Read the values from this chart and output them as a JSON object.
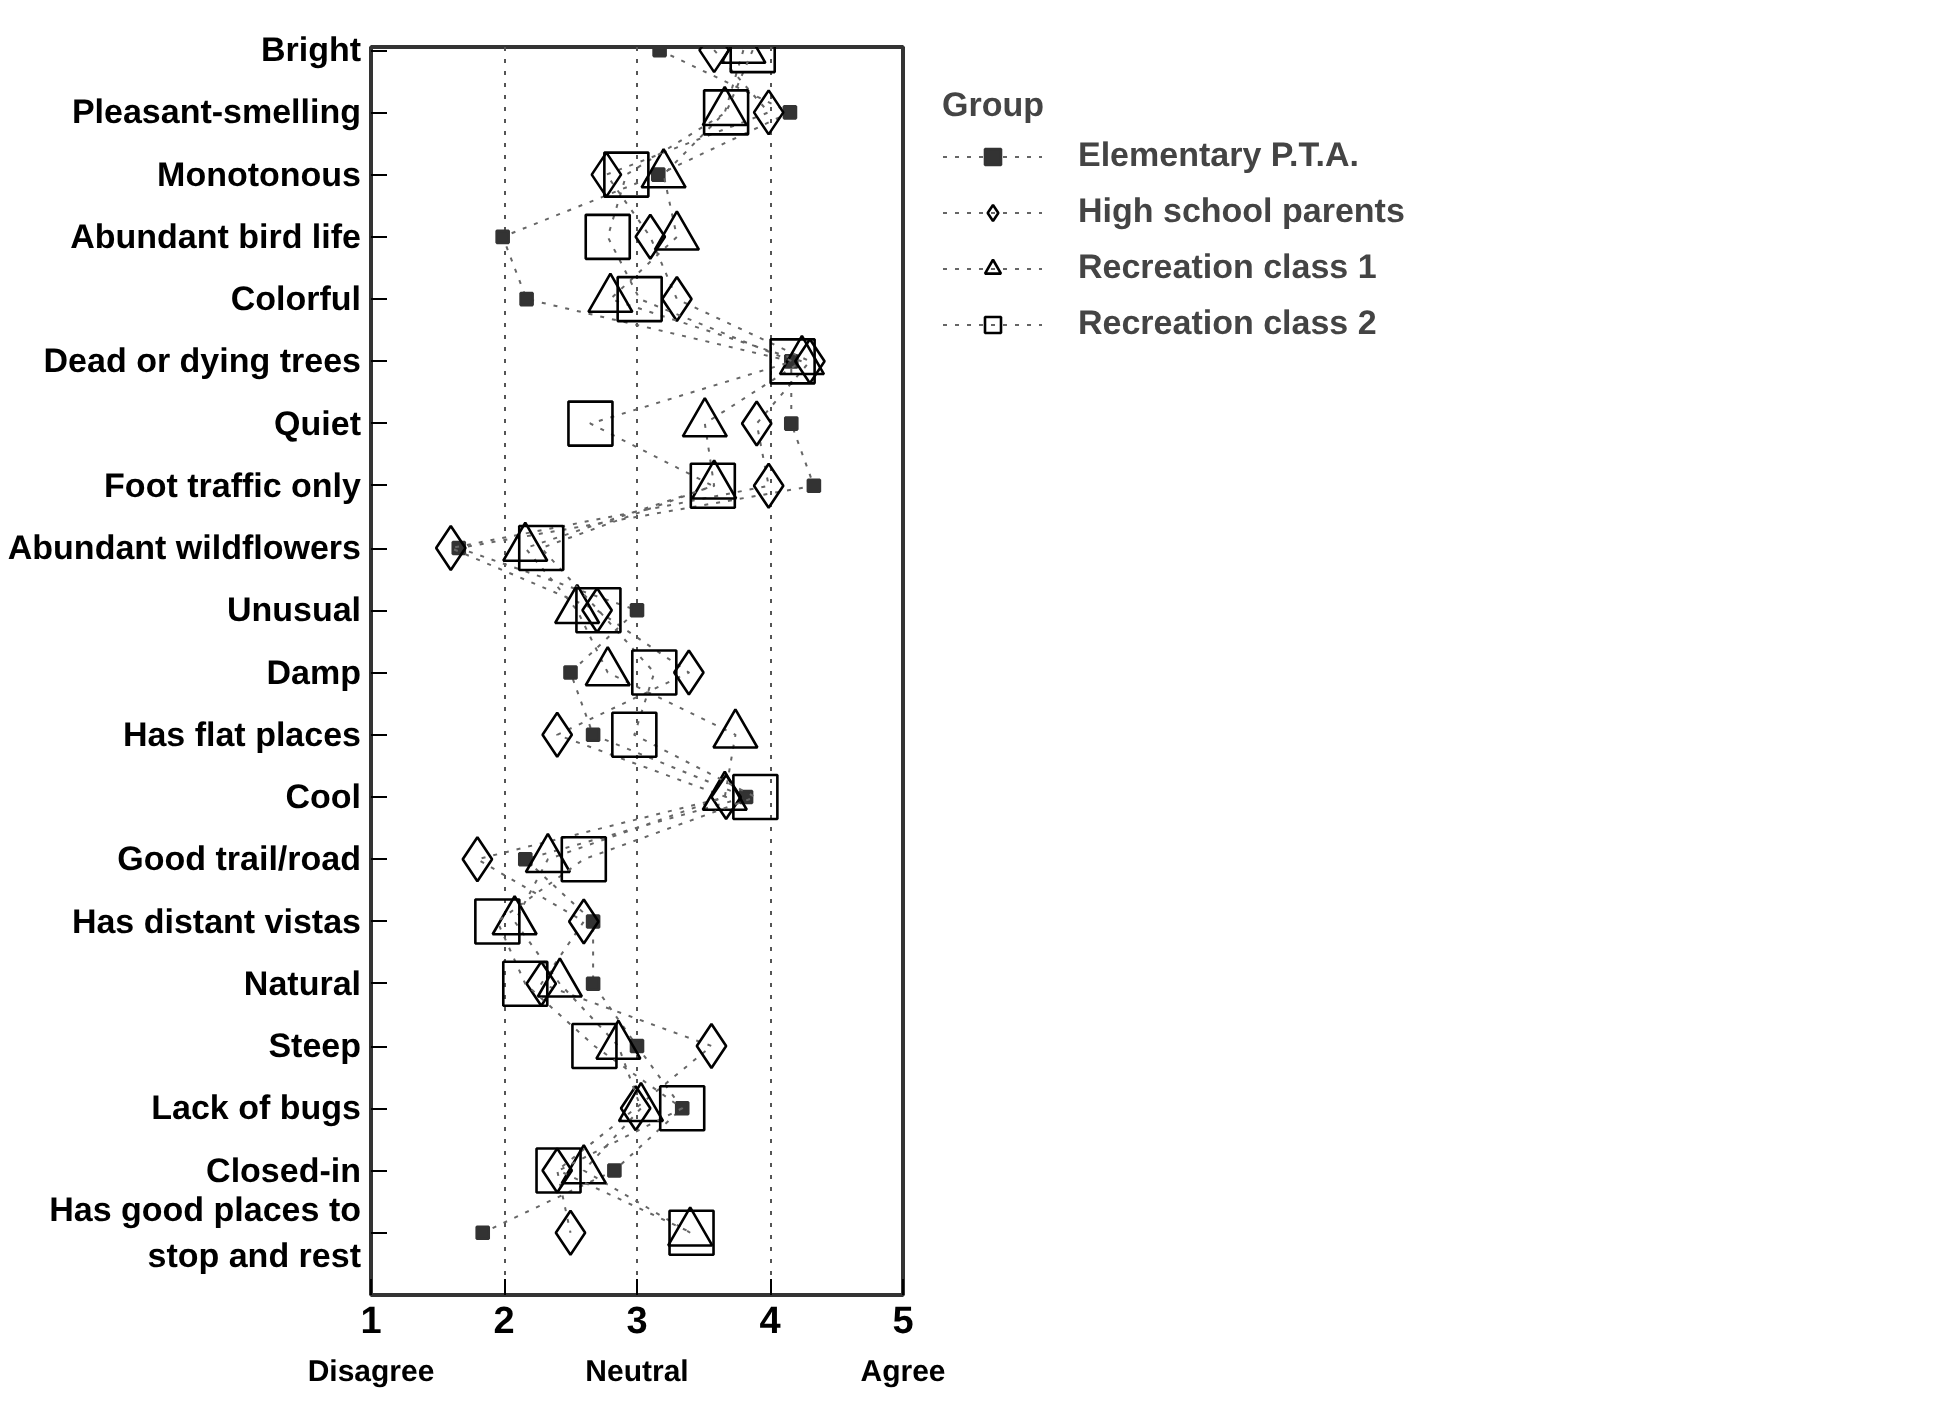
{
  "chart_data": {
    "type": "line",
    "orientation": "horizontal",
    "categories": [
      "Bright",
      "Pleasant-smelling",
      "Monotonous",
      "Abundant bird life",
      "Colorful",
      "Dead or dying trees",
      "Quiet",
      "Foot traffic only",
      "Abundant wildflowers",
      "Unusual",
      "Damp",
      "Has flat places",
      "Cool",
      "Good trail/road",
      "Has distant vistas",
      "Natural",
      "Steep",
      "Lack of bugs",
      "Closed-in",
      "Has good places to stop and rest"
    ],
    "series": [
      {
        "name": "Elementary P.T.A.",
        "color": "#333333",
        "marker": "square",
        "values": [
          3.17,
          4.15,
          3.16,
          1.99,
          2.17,
          4.16,
          4.16,
          4.33,
          1.66,
          3.0,
          2.5,
          2.67,
          3.82,
          2.16,
          2.67,
          2.67,
          3.0,
          3.34,
          2.83,
          1.84
        ]
      },
      {
        "name": "High school parents",
        "color": "#000000",
        "marker": "diamond",
        "values": [
          3.58,
          3.99,
          2.77,
          3.1,
          3.3,
          4.3,
          3.9,
          3.99,
          1.6,
          2.7,
          3.39,
          2.4,
          3.67,
          1.8,
          2.6,
          2.28,
          3.56,
          2.99,
          2.4,
          2.5
        ]
      },
      {
        "name": "Recreation class 1",
        "color": "#000000",
        "marker": "triangle",
        "values": [
          3.8,
          3.66,
          3.2,
          3.3,
          2.8,
          4.24,
          3.51,
          3.58,
          2.16,
          2.55,
          2.78,
          3.74,
          3.66,
          2.33,
          2.08,
          2.42,
          2.86,
          3.03,
          2.6,
          3.4
        ]
      },
      {
        "name": "Recreation class 2",
        "color": "#000000",
        "marker": "square",
        "values": [
          3.87,
          3.67,
          2.92,
          2.78,
          3.02,
          4.17,
          2.65,
          3.57,
          2.28,
          2.71,
          3.13,
          2.98,
          3.89,
          2.6,
          1.95,
          2.16,
          2.68,
          3.34,
          2.41,
          3.41
        ]
      }
    ],
    "xlim": [
      1,
      5
    ],
    "xticks": [
      1,
      2,
      3,
      4,
      5
    ],
    "grid": "x",
    "legend": "right",
    "legend_title": "Group",
    "line_style": "dotted",
    "annotations": [
      "Disagree",
      "Neutral",
      "Agree"
    ]
  }
}
